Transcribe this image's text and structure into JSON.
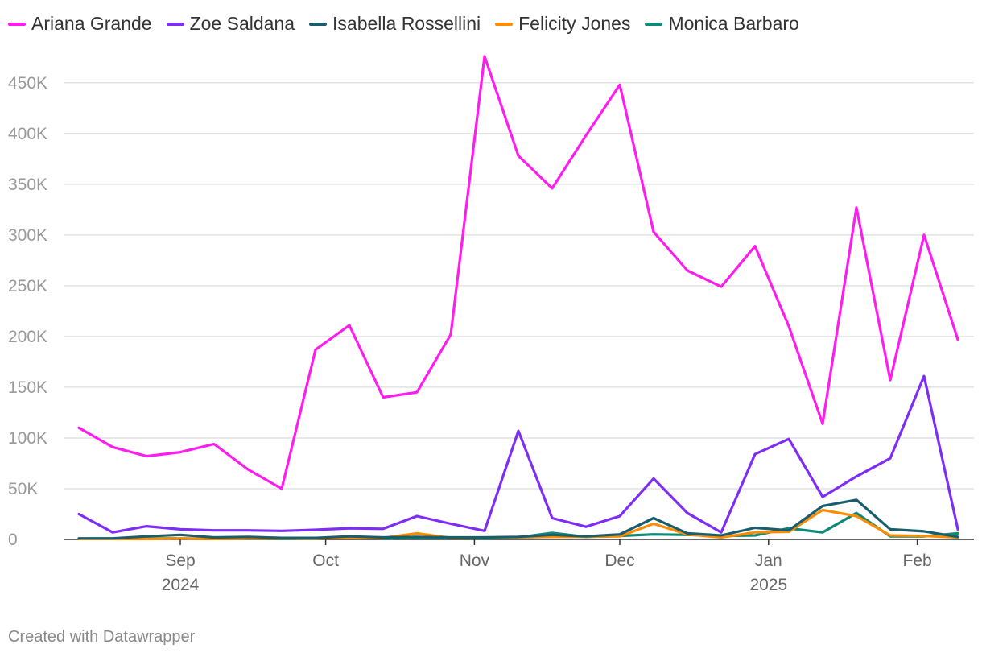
{
  "chart_data": {
    "type": "line",
    "title": "",
    "xlabel": "",
    "ylabel": "",
    "ylim": [
      0,
      450000
    ],
    "y_ticks": [
      0,
      50000,
      100000,
      150000,
      200000,
      250000,
      300000,
      350000,
      400000,
      450000
    ],
    "y_tick_labels": [
      "0",
      "50K",
      "100K",
      "150K",
      "200K",
      "250K",
      "300K",
      "350K",
      "400K",
      "450K"
    ],
    "x_ticks": [
      {
        "index": 3,
        "label": "Sep",
        "year": "2024"
      },
      {
        "index": 7.3,
        "label": "Oct",
        "year": ""
      },
      {
        "index": 11.7,
        "label": "Nov",
        "year": ""
      },
      {
        "index": 16,
        "label": "Dec",
        "year": ""
      },
      {
        "index": 20.4,
        "label": "Jan",
        "year": "2025"
      },
      {
        "index": 24.8,
        "label": "Feb",
        "year": ""
      }
    ],
    "x_count": 27,
    "legend_position": "top-left",
    "grid": true,
    "series": [
      {
        "name": "Ariana Grande",
        "color": "#ff1cee",
        "values": [
          110000,
          91000,
          82000,
          86000,
          94000,
          69000,
          50000,
          187000,
          211000,
          140000,
          145000,
          202000,
          476000,
          378000,
          346000,
          398000,
          448000,
          303000,
          265000,
          249000,
          289000,
          210000,
          114000,
          327000,
          157000,
          300000,
          197000
        ]
      },
      {
        "name": "Zoe Saldana",
        "color": "#7d2df5",
        "values": [
          25000,
          7000,
          13000,
          10000,
          9000,
          9000,
          8500,
          9500,
          11000,
          10500,
          23000,
          15500,
          8500,
          107000,
          21000,
          12500,
          23000,
          60000,
          26000,
          7000,
          84000,
          99000,
          42000,
          62000,
          80000,
          161000,
          10000
        ]
      },
      {
        "name": "Isabella Rossellini",
        "color": "#1a5e6e",
        "values": [
          1000,
          1000,
          3000,
          4500,
          2000,
          2500,
          1500,
          1500,
          3000,
          2000,
          2500,
          2000,
          2000,
          2500,
          4500,
          3000,
          5000,
          21000,
          6000,
          4000,
          11500,
          9000,
          33000,
          39000,
          10000,
          8000,
          2500
        ]
      },
      {
        "name": "Felicity Jones",
        "color": "#ff8c00",
        "values": [
          500,
          500,
          500,
          1000,
          500,
          1000,
          1000,
          1000,
          1500,
          1500,
          6000,
          1500,
          2000,
          2000,
          2500,
          2500,
          3000,
          15500,
          5000,
          2000,
          7000,
          7500,
          29000,
          23000,
          4000,
          3500,
          2000
        ]
      },
      {
        "name": "Monica Barbaro",
        "color": "#0f8a77",
        "values": [
          500,
          500,
          1000,
          1000,
          500,
          1000,
          500,
          1000,
          2000,
          1000,
          1500,
          1500,
          1000,
          2000,
          6500,
          2500,
          3500,
          5000,
          4500,
          3500,
          4000,
          11000,
          7000,
          26000,
          3000,
          3000,
          6000
        ]
      }
    ]
  },
  "footer": {
    "credit": "Created with Datawrapper"
  }
}
